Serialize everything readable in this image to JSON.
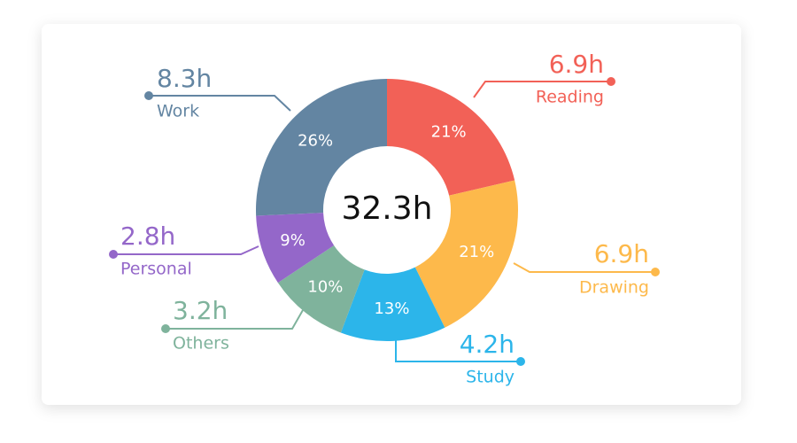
{
  "chart_data": {
    "type": "donut",
    "categories": [
      "Reading",
      "Drawing",
      "Study",
      "Others",
      "Personal",
      "Work"
    ],
    "values": [
      6.9,
      6.9,
      4.2,
      3.2,
      2.8,
      8.3
    ],
    "value_labels": [
      "6.9h",
      "6.9h",
      "4.2h",
      "3.2h",
      "2.8h",
      "8.3h"
    ],
    "percentages": [
      21,
      21,
      13,
      10,
      9,
      26
    ],
    "percentage_labels": [
      "21%",
      "21%",
      "13%",
      "10%",
      "9%",
      "26%"
    ],
    "colors": [
      "#f26157",
      "#fdb94b",
      "#2cb5ea",
      "#7fb39c",
      "#9467c9",
      "#6385a2"
    ],
    "total": 32.3,
    "total_label": "32.3h"
  }
}
